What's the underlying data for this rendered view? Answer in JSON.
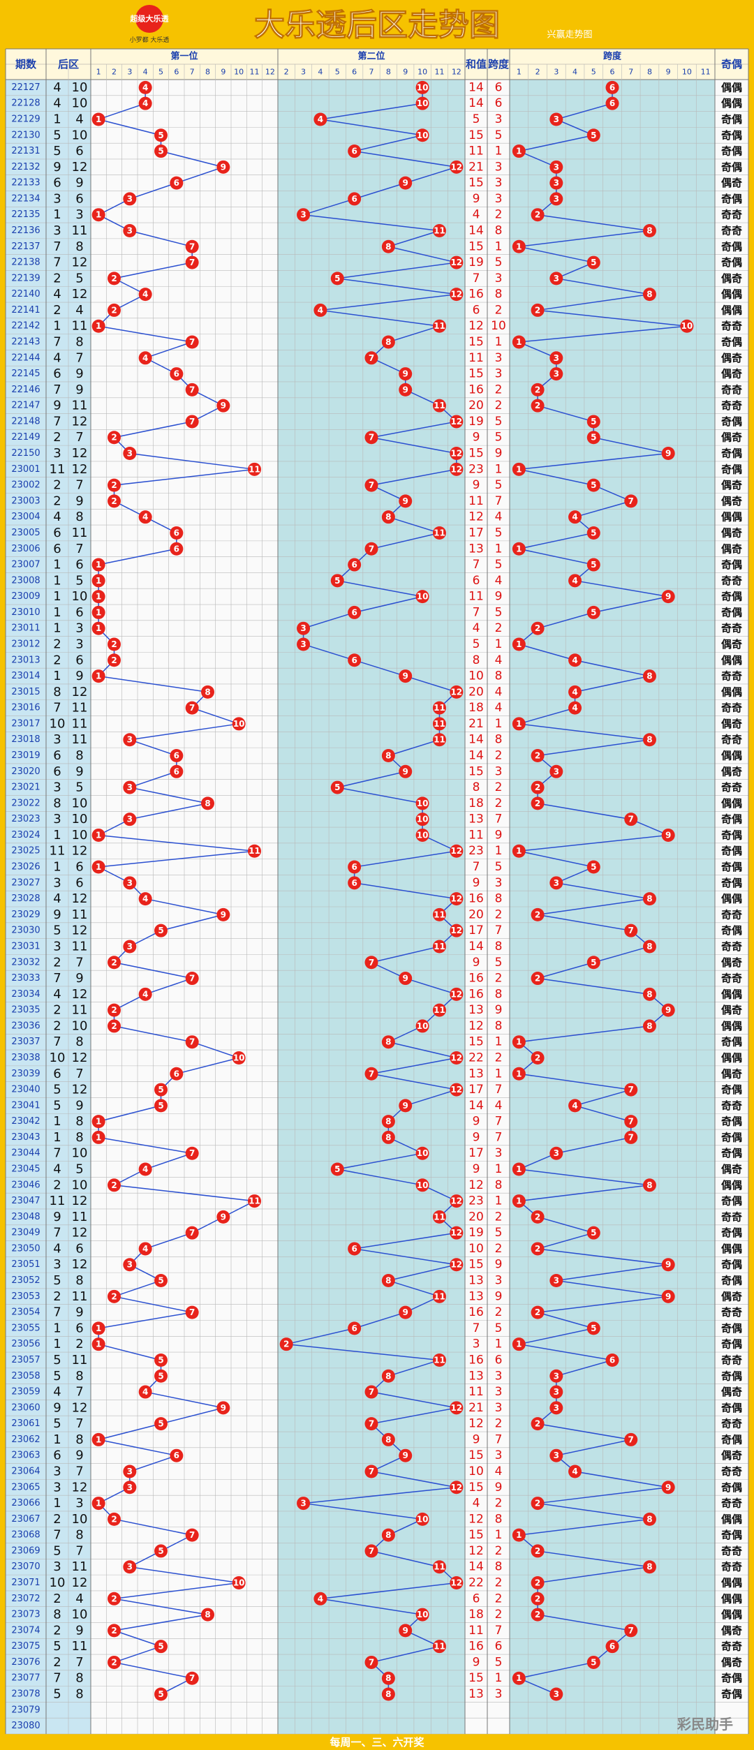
{
  "header": {
    "title": "大乐透后区走势图",
    "subtitle": "兴赢走势图",
    "logo": "超级大乐透",
    "logo_caption": "小罗都 大乐透"
  },
  "table": {
    "columns": {
      "issue": "期数",
      "back": "后区",
      "first": "第一位",
      "second": "第二位",
      "sum": "和值",
      "span": "跨度",
      "span_dist": "跨度",
      "parity": "奇偶"
    },
    "first_labels": [
      1,
      2,
      3,
      4,
      5,
      6,
      7,
      8,
      9,
      10,
      11,
      12
    ],
    "second_labels": [
      2,
      3,
      4,
      5,
      6,
      7,
      8,
      9,
      10,
      11,
      12
    ],
    "span_labels": [
      1,
      2,
      3,
      4,
      5,
      6,
      7,
      8,
      9,
      10,
      11
    ],
    "rows": [
      {
        "issue": "22127",
        "back": [
          4,
          10
        ],
        "sum": 14,
        "span": 6,
        "parity": "偶偶"
      },
      {
        "issue": "22128",
        "back": [
          4,
          10
        ],
        "sum": 14,
        "span": 6,
        "parity": "偶偶"
      },
      {
        "issue": "22129",
        "back": [
          1,
          4
        ],
        "sum": 5,
        "span": 3,
        "parity": "奇偶"
      },
      {
        "issue": "22130",
        "back": [
          5,
          10
        ],
        "sum": 15,
        "span": 5,
        "parity": "奇偶"
      },
      {
        "issue": "22131",
        "back": [
          5,
          6
        ],
        "sum": 11,
        "span": 1,
        "parity": "奇偶"
      },
      {
        "issue": "22132",
        "back": [
          9,
          12
        ],
        "sum": 21,
        "span": 3,
        "parity": "奇偶"
      },
      {
        "issue": "22133",
        "back": [
          6,
          9
        ],
        "sum": 15,
        "span": 3,
        "parity": "偶奇"
      },
      {
        "issue": "22134",
        "back": [
          3,
          6
        ],
        "sum": 9,
        "span": 3,
        "parity": "奇偶"
      },
      {
        "issue": "22135",
        "back": [
          1,
          3
        ],
        "sum": 4,
        "span": 2,
        "parity": "奇奇"
      },
      {
        "issue": "22136",
        "back": [
          3,
          11
        ],
        "sum": 14,
        "span": 8,
        "parity": "奇奇"
      },
      {
        "issue": "22137",
        "back": [
          7,
          8
        ],
        "sum": 15,
        "span": 1,
        "parity": "奇偶"
      },
      {
        "issue": "22138",
        "back": [
          7,
          12
        ],
        "sum": 19,
        "span": 5,
        "parity": "奇偶"
      },
      {
        "issue": "22139",
        "back": [
          2,
          5
        ],
        "sum": 7,
        "span": 3,
        "parity": "偶奇"
      },
      {
        "issue": "22140",
        "back": [
          4,
          12
        ],
        "sum": 16,
        "span": 8,
        "parity": "偶偶"
      },
      {
        "issue": "22141",
        "back": [
          2,
          4
        ],
        "sum": 6,
        "span": 2,
        "parity": "偶偶"
      },
      {
        "issue": "22142",
        "back": [
          1,
          11
        ],
        "sum": 12,
        "span": 10,
        "parity": "奇奇"
      },
      {
        "issue": "22143",
        "back": [
          7,
          8
        ],
        "sum": 15,
        "span": 1,
        "parity": "奇偶"
      },
      {
        "issue": "22144",
        "back": [
          4,
          7
        ],
        "sum": 11,
        "span": 3,
        "parity": "偶奇"
      },
      {
        "issue": "22145",
        "back": [
          6,
          9
        ],
        "sum": 15,
        "span": 3,
        "parity": "偶奇"
      },
      {
        "issue": "22146",
        "back": [
          7,
          9
        ],
        "sum": 16,
        "span": 2,
        "parity": "奇奇"
      },
      {
        "issue": "22147",
        "back": [
          9,
          11
        ],
        "sum": 20,
        "span": 2,
        "parity": "奇奇"
      },
      {
        "issue": "22148",
        "back": [
          7,
          12
        ],
        "sum": 19,
        "span": 5,
        "parity": "奇偶"
      },
      {
        "issue": "22149",
        "back": [
          2,
          7
        ],
        "sum": 9,
        "span": 5,
        "parity": "偶奇"
      },
      {
        "issue": "22150",
        "back": [
          3,
          12
        ],
        "sum": 15,
        "span": 9,
        "parity": "奇偶"
      },
      {
        "issue": "23001",
        "back": [
          11,
          12
        ],
        "sum": 23,
        "span": 1,
        "parity": "奇偶"
      },
      {
        "issue": "23002",
        "back": [
          2,
          7
        ],
        "sum": 9,
        "span": 5,
        "parity": "偶奇"
      },
      {
        "issue": "23003",
        "back": [
          2,
          9
        ],
        "sum": 11,
        "span": 7,
        "parity": "偶奇"
      },
      {
        "issue": "23004",
        "back": [
          4,
          8
        ],
        "sum": 12,
        "span": 4,
        "parity": "偶偶"
      },
      {
        "issue": "23005",
        "back": [
          6,
          11
        ],
        "sum": 17,
        "span": 5,
        "parity": "偶奇"
      },
      {
        "issue": "23006",
        "back": [
          6,
          7
        ],
        "sum": 13,
        "span": 1,
        "parity": "偶奇"
      },
      {
        "issue": "23007",
        "back": [
          1,
          6
        ],
        "sum": 7,
        "span": 5,
        "parity": "奇偶"
      },
      {
        "issue": "23008",
        "back": [
          1,
          5
        ],
        "sum": 6,
        "span": 4,
        "parity": "奇奇"
      },
      {
        "issue": "23009",
        "back": [
          1,
          10
        ],
        "sum": 11,
        "span": 9,
        "parity": "奇偶"
      },
      {
        "issue": "23010",
        "back": [
          1,
          6
        ],
        "sum": 7,
        "span": 5,
        "parity": "奇偶"
      },
      {
        "issue": "23011",
        "back": [
          1,
          3
        ],
        "sum": 4,
        "span": 2,
        "parity": "奇奇"
      },
      {
        "issue": "23012",
        "back": [
          2,
          3
        ],
        "sum": 5,
        "span": 1,
        "parity": "偶奇"
      },
      {
        "issue": "23013",
        "back": [
          2,
          6
        ],
        "sum": 8,
        "span": 4,
        "parity": "偶偶"
      },
      {
        "issue": "23014",
        "back": [
          1,
          9
        ],
        "sum": 10,
        "span": 8,
        "parity": "奇奇"
      },
      {
        "issue": "23015",
        "back": [
          8,
          12
        ],
        "sum": 20,
        "span": 4,
        "parity": "偶偶"
      },
      {
        "issue": "23016",
        "back": [
          7,
          11
        ],
        "sum": 18,
        "span": 4,
        "parity": "奇奇"
      },
      {
        "issue": "23017",
        "back": [
          10,
          11
        ],
        "sum": 21,
        "span": 1,
        "parity": "偶奇"
      },
      {
        "issue": "23018",
        "back": [
          3,
          11
        ],
        "sum": 14,
        "span": 8,
        "parity": "奇奇"
      },
      {
        "issue": "23019",
        "back": [
          6,
          8
        ],
        "sum": 14,
        "span": 2,
        "parity": "偶偶"
      },
      {
        "issue": "23020",
        "back": [
          6,
          9
        ],
        "sum": 15,
        "span": 3,
        "parity": "偶奇"
      },
      {
        "issue": "23021",
        "back": [
          3,
          5
        ],
        "sum": 8,
        "span": 2,
        "parity": "奇奇"
      },
      {
        "issue": "23022",
        "back": [
          8,
          10
        ],
        "sum": 18,
        "span": 2,
        "parity": "偶偶"
      },
      {
        "issue": "23023",
        "back": [
          3,
          10
        ],
        "sum": 13,
        "span": 7,
        "parity": "奇偶"
      },
      {
        "issue": "23024",
        "back": [
          1,
          10
        ],
        "sum": 11,
        "span": 9,
        "parity": "奇偶"
      },
      {
        "issue": "23025",
        "back": [
          11,
          12
        ],
        "sum": 23,
        "span": 1,
        "parity": "奇偶"
      },
      {
        "issue": "23026",
        "back": [
          1,
          6
        ],
        "sum": 7,
        "span": 5,
        "parity": "奇偶"
      },
      {
        "issue": "23027",
        "back": [
          3,
          6
        ],
        "sum": 9,
        "span": 3,
        "parity": "奇偶"
      },
      {
        "issue": "23028",
        "back": [
          4,
          12
        ],
        "sum": 16,
        "span": 8,
        "parity": "偶偶"
      },
      {
        "issue": "23029",
        "back": [
          9,
          11
        ],
        "sum": 20,
        "span": 2,
        "parity": "奇奇"
      },
      {
        "issue": "23030",
        "back": [
          5,
          12
        ],
        "sum": 17,
        "span": 7,
        "parity": "奇偶"
      },
      {
        "issue": "23031",
        "back": [
          3,
          11
        ],
        "sum": 14,
        "span": 8,
        "parity": "奇奇"
      },
      {
        "issue": "23032",
        "back": [
          2,
          7
        ],
        "sum": 9,
        "span": 5,
        "parity": "偶奇"
      },
      {
        "issue": "23033",
        "back": [
          7,
          9
        ],
        "sum": 16,
        "span": 2,
        "parity": "奇奇"
      },
      {
        "issue": "23034",
        "back": [
          4,
          12
        ],
        "sum": 16,
        "span": 8,
        "parity": "偶偶"
      },
      {
        "issue": "23035",
        "back": [
          2,
          11
        ],
        "sum": 13,
        "span": 9,
        "parity": "偶奇"
      },
      {
        "issue": "23036",
        "back": [
          2,
          10
        ],
        "sum": 12,
        "span": 8,
        "parity": "偶偶"
      },
      {
        "issue": "23037",
        "back": [
          7,
          8
        ],
        "sum": 15,
        "span": 1,
        "parity": "奇偶"
      },
      {
        "issue": "23038",
        "back": [
          10,
          12
        ],
        "sum": 22,
        "span": 2,
        "parity": "偶偶"
      },
      {
        "issue": "23039",
        "back": [
          6,
          7
        ],
        "sum": 13,
        "span": 1,
        "parity": "偶奇"
      },
      {
        "issue": "23040",
        "back": [
          5,
          12
        ],
        "sum": 17,
        "span": 7,
        "parity": "奇偶"
      },
      {
        "issue": "23041",
        "back": [
          5,
          9
        ],
        "sum": 14,
        "span": 4,
        "parity": "奇奇"
      },
      {
        "issue": "23042",
        "back": [
          1,
          8
        ],
        "sum": 9,
        "span": 7,
        "parity": "奇偶"
      },
      {
        "issue": "23043",
        "back": [
          1,
          8
        ],
        "sum": 9,
        "span": 7,
        "parity": "奇偶"
      },
      {
        "issue": "23044",
        "back": [
          7,
          10
        ],
        "sum": 17,
        "span": 3,
        "parity": "奇偶"
      },
      {
        "issue": "23045",
        "back": [
          4,
          5
        ],
        "sum": 9,
        "span": 1,
        "parity": "偶奇"
      },
      {
        "issue": "23046",
        "back": [
          2,
          10
        ],
        "sum": 12,
        "span": 8,
        "parity": "偶偶"
      },
      {
        "issue": "23047",
        "back": [
          11,
          12
        ],
        "sum": 23,
        "span": 1,
        "parity": "奇偶"
      },
      {
        "issue": "23048",
        "back": [
          9,
          11
        ],
        "sum": 20,
        "span": 2,
        "parity": "奇奇"
      },
      {
        "issue": "23049",
        "back": [
          7,
          12
        ],
        "sum": 19,
        "span": 5,
        "parity": "奇偶"
      },
      {
        "issue": "23050",
        "back": [
          4,
          6
        ],
        "sum": 10,
        "span": 2,
        "parity": "偶偶"
      },
      {
        "issue": "23051",
        "back": [
          3,
          12
        ],
        "sum": 15,
        "span": 9,
        "parity": "奇偶"
      },
      {
        "issue": "23052",
        "back": [
          5,
          8
        ],
        "sum": 13,
        "span": 3,
        "parity": "奇偶"
      },
      {
        "issue": "23053",
        "back": [
          2,
          11
        ],
        "sum": 13,
        "span": 9,
        "parity": "偶奇"
      },
      {
        "issue": "23054",
        "back": [
          7,
          9
        ],
        "sum": 16,
        "span": 2,
        "parity": "奇奇"
      },
      {
        "issue": "23055",
        "back": [
          1,
          6
        ],
        "sum": 7,
        "span": 5,
        "parity": "奇偶"
      },
      {
        "issue": "23056",
        "back": [
          1,
          2
        ],
        "sum": 3,
        "span": 1,
        "parity": "奇偶"
      },
      {
        "issue": "23057",
        "back": [
          5,
          11
        ],
        "sum": 16,
        "span": 6,
        "parity": "奇奇"
      },
      {
        "issue": "23058",
        "back": [
          5,
          8
        ],
        "sum": 13,
        "span": 3,
        "parity": "奇偶"
      },
      {
        "issue": "23059",
        "back": [
          4,
          7
        ],
        "sum": 11,
        "span": 3,
        "parity": "偶奇"
      },
      {
        "issue": "23060",
        "back": [
          9,
          12
        ],
        "sum": 21,
        "span": 3,
        "parity": "奇偶"
      },
      {
        "issue": "23061",
        "back": [
          5,
          7
        ],
        "sum": 12,
        "span": 2,
        "parity": "奇奇"
      },
      {
        "issue": "23062",
        "back": [
          1,
          8
        ],
        "sum": 9,
        "span": 7,
        "parity": "奇偶"
      },
      {
        "issue": "23063",
        "back": [
          6,
          9
        ],
        "sum": 15,
        "span": 3,
        "parity": "偶奇"
      },
      {
        "issue": "23064",
        "back": [
          3,
          7
        ],
        "sum": 10,
        "span": 4,
        "parity": "奇奇"
      },
      {
        "issue": "23065",
        "back": [
          3,
          12
        ],
        "sum": 15,
        "span": 9,
        "parity": "奇偶"
      },
      {
        "issue": "23066",
        "back": [
          1,
          3
        ],
        "sum": 4,
        "span": 2,
        "parity": "奇奇"
      },
      {
        "issue": "23067",
        "back": [
          2,
          10
        ],
        "sum": 12,
        "span": 8,
        "parity": "偶偶"
      },
      {
        "issue": "23068",
        "back": [
          7,
          8
        ],
        "sum": 15,
        "span": 1,
        "parity": "奇偶"
      },
      {
        "issue": "23069",
        "back": [
          5,
          7
        ],
        "sum": 12,
        "span": 2,
        "parity": "奇奇"
      },
      {
        "issue": "23070",
        "back": [
          3,
          11
        ],
        "sum": 14,
        "span": 8,
        "parity": "奇奇"
      },
      {
        "issue": "23071",
        "back": [
          10,
          12
        ],
        "sum": 22,
        "span": 2,
        "parity": "偶偶"
      },
      {
        "issue": "23072",
        "back": [
          2,
          4
        ],
        "sum": 6,
        "span": 2,
        "parity": "偶偶"
      },
      {
        "issue": "23073",
        "back": [
          8,
          10
        ],
        "sum": 18,
        "span": 2,
        "parity": "偶偶"
      },
      {
        "issue": "23074",
        "back": [
          2,
          9
        ],
        "sum": 11,
        "span": 7,
        "parity": "偶奇"
      },
      {
        "issue": "23075",
        "back": [
          5,
          11
        ],
        "sum": 16,
        "span": 6,
        "parity": "奇奇"
      },
      {
        "issue": "23076",
        "back": [
          2,
          7
        ],
        "sum": 9,
        "span": 5,
        "parity": "偶奇"
      },
      {
        "issue": "23077",
        "back": [
          7,
          8
        ],
        "sum": 15,
        "span": 1,
        "parity": "奇偶"
      },
      {
        "issue": "23078",
        "back": [
          5,
          8
        ],
        "sum": 13,
        "span": 3,
        "parity": "奇偶"
      },
      {
        "issue": "23079"
      },
      {
        "issue": "23080"
      }
    ]
  },
  "footer": "每周一、三、六开奖",
  "watermark": "彩民助手"
}
